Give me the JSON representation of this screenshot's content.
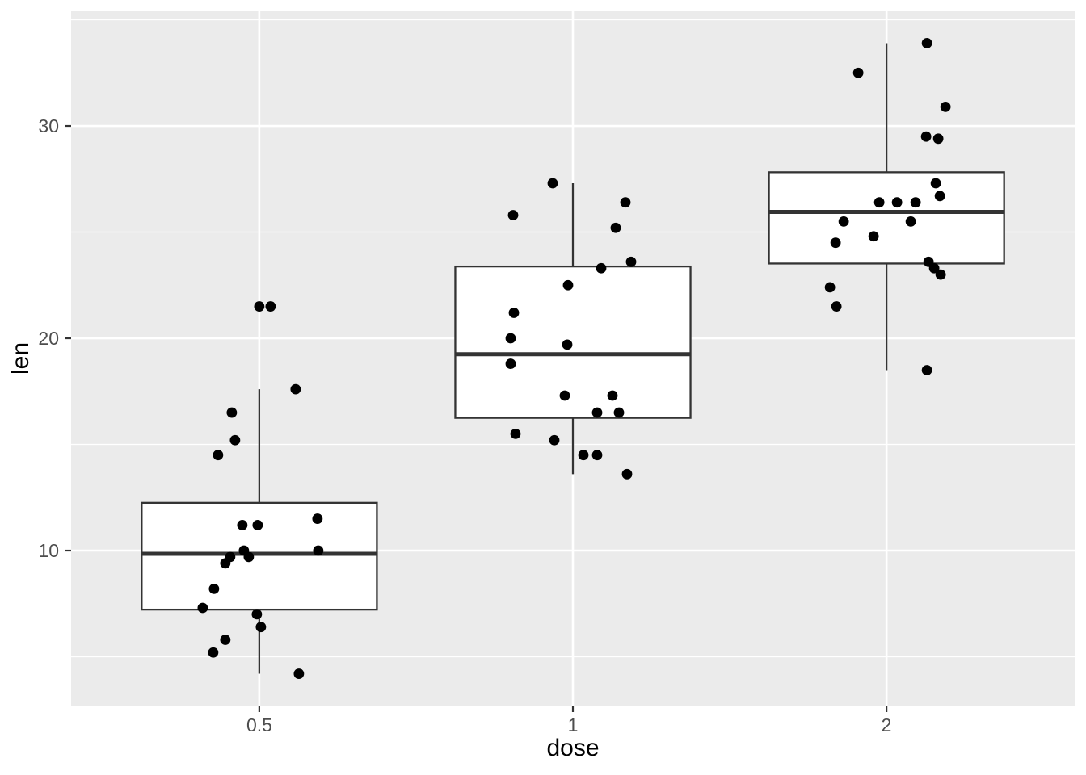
{
  "figure": {
    "x_axis": {
      "title": "dose",
      "ticks": [
        {
          "label": "0.5"
        },
        {
          "label": "1"
        },
        {
          "label": "2"
        }
      ]
    },
    "y_axis": {
      "title": "len",
      "ticks": [
        {
          "label": "10"
        },
        {
          "label": "20"
        },
        {
          "label": "30"
        }
      ]
    }
  },
  "chart_data": {
    "type": "boxplot",
    "title": "",
    "xlabel": "dose",
    "ylabel": "len",
    "categories": [
      "0.5",
      "1",
      "2"
    ],
    "ylim": [
      2.7,
      35.4
    ],
    "y_major_ticks": [
      10,
      20,
      30
    ],
    "y_minor_gridlines": [
      5,
      15,
      25,
      35
    ],
    "grid": "on",
    "legend": "none",
    "point_note": "points listed as [len_value, jitter_x_offset_px]",
    "groups": [
      {
        "category": "0.5",
        "stats": {
          "lower_whisker": 4.2,
          "q1": 7.22,
          "median": 9.85,
          "q3": 12.25,
          "upper_whisker": 17.6
        },
        "outliers": [
          21.5
        ],
        "points": [
          [
            21.5,
            14
          ],
          [
            17.6,
            45
          ],
          [
            16.5,
            -34
          ],
          [
            15.2,
            -30
          ],
          [
            14.5,
            -51
          ],
          [
            11.5,
            72
          ],
          [
            11.2,
            -21
          ],
          [
            11.2,
            -2
          ],
          [
            10.0,
            -19
          ],
          [
            10.0,
            73
          ],
          [
            9.7,
            -13
          ],
          [
            9.7,
            -36
          ],
          [
            9.4,
            -42
          ],
          [
            8.2,
            -56
          ],
          [
            7.3,
            -70
          ],
          [
            7.0,
            -3
          ],
          [
            6.4,
            2
          ],
          [
            5.8,
            -42
          ],
          [
            5.2,
            -57
          ],
          [
            4.2,
            49
          ]
        ]
      },
      {
        "category": "1",
        "stats": {
          "lower_whisker": 13.6,
          "q1": 16.25,
          "median": 19.25,
          "q3": 23.38,
          "upper_whisker": 27.3
        },
        "outliers": [],
        "points": [
          [
            27.3,
            -25
          ],
          [
            26.4,
            65
          ],
          [
            25.8,
            -74
          ],
          [
            25.2,
            53
          ],
          [
            23.6,
            72
          ],
          [
            23.3,
            35
          ],
          [
            22.5,
            -6
          ],
          [
            21.2,
            -73
          ],
          [
            20.0,
            -77
          ],
          [
            19.7,
            -7
          ],
          [
            18.8,
            -77
          ],
          [
            17.3,
            -10
          ],
          [
            17.3,
            49
          ],
          [
            16.5,
            30
          ],
          [
            16.5,
            57
          ],
          [
            15.5,
            -71
          ],
          [
            15.2,
            -23
          ],
          [
            14.5,
            13
          ],
          [
            14.5,
            30
          ],
          [
            13.6,
            67
          ]
        ]
      },
      {
        "category": "2",
        "stats": {
          "lower_whisker": 18.5,
          "q1": 23.52,
          "median": 25.95,
          "q3": 27.82,
          "upper_whisker": 33.9
        },
        "outliers": [],
        "points": [
          [
            33.9,
            50
          ],
          [
            32.5,
            -35
          ],
          [
            30.9,
            73
          ],
          [
            29.5,
            49
          ],
          [
            29.4,
            64
          ],
          [
            27.3,
            61
          ],
          [
            26.7,
            66
          ],
          [
            26.4,
            -9
          ],
          [
            26.4,
            13
          ],
          [
            26.4,
            36
          ],
          [
            25.5,
            -53
          ],
          [
            25.5,
            30
          ],
          [
            24.8,
            -16
          ],
          [
            24.5,
            -63
          ],
          [
            23.6,
            52
          ],
          [
            23.3,
            59
          ],
          [
            23.0,
            67
          ],
          [
            22.4,
            -70
          ],
          [
            21.5,
            -62
          ],
          [
            18.5,
            50
          ]
        ]
      }
    ],
    "style": {
      "panel_bg": "#EBEBEB",
      "gridline": "#FFFFFF",
      "box_fill": "#FFFFFF",
      "box_stroke": "#333333",
      "point_color": "#000000",
      "tick_mark": "#333333",
      "tick_label": "#4D4D4D",
      "axis_title": "#000000"
    }
  }
}
